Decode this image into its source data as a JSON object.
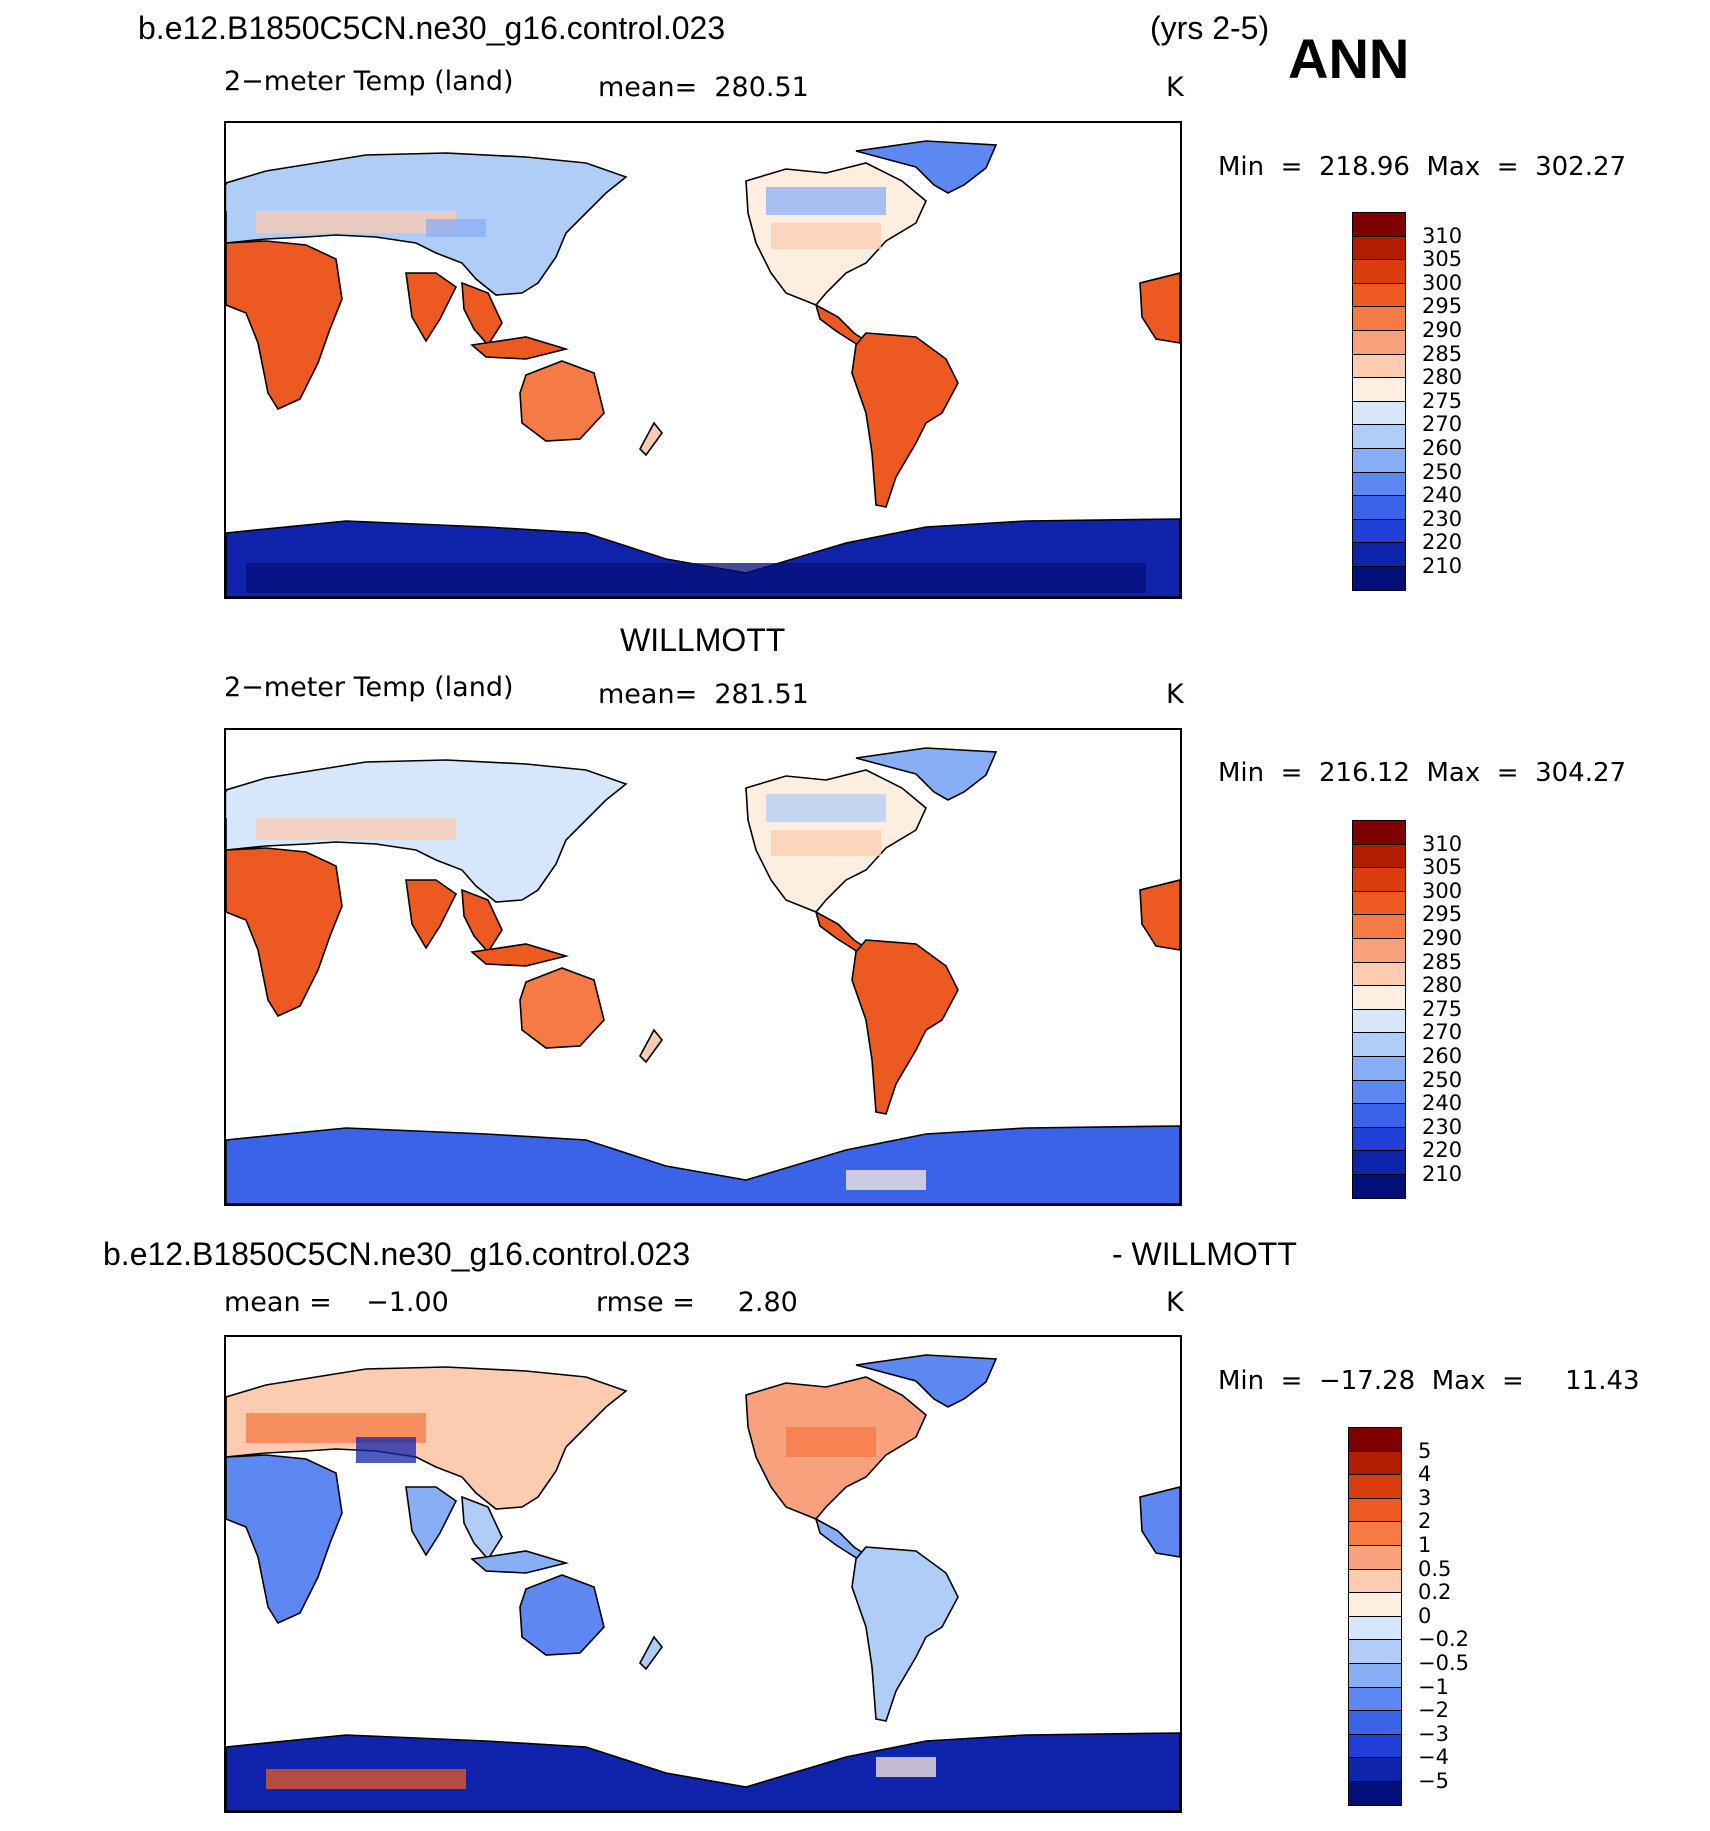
{
  "header": {
    "case_name": "b.e12.B1850C5CN.ne30_g16.control.023",
    "years": "(yrs 2-5)",
    "season": "ANN"
  },
  "panels": [
    {
      "name": "model",
      "variable": "2−meter Temp (land)",
      "stat": "mean=  280.51",
      "units": "K",
      "minmax": "Min  =  218.96  Max  =  302.27",
      "colorbar_labels": [
        "310",
        "305",
        "300",
        "295",
        "290",
        "285",
        "280",
        "275",
        "270",
        "260",
        "250",
        "240",
        "230",
        "220",
        "210"
      ],
      "colorbar_colors": [
        "#7f0000",
        "#b21c00",
        "#d93d0d",
        "#ec5a22",
        "#f57a45",
        "#f9a07c",
        "#fccbb0",
        "#fdeee0",
        "#d6e6fb",
        "#b0cdf8",
        "#88aef5",
        "#5e88f1",
        "#3a63e8",
        "#1f3fd6",
        "#1024ab",
        "#050f7a"
      ]
    },
    {
      "name": "obs",
      "title": "WILLMOTT",
      "variable": "2−meter Temp (land)",
      "stat": "mean=  281.51",
      "units": "K",
      "minmax": "Min  =  216.12  Max  =  304.27",
      "colorbar_labels": [
        "310",
        "305",
        "300",
        "295",
        "290",
        "285",
        "280",
        "275",
        "270",
        "260",
        "250",
        "240",
        "230",
        "220",
        "210"
      ],
      "colorbar_colors": [
        "#7f0000",
        "#b21c00",
        "#d93d0d",
        "#ec5a22",
        "#f57a45",
        "#f9a07c",
        "#fccbb0",
        "#fdeee0",
        "#d6e6fb",
        "#b0cdf8",
        "#88aef5",
        "#5e88f1",
        "#3a63e8",
        "#1f3fd6",
        "#1024ab",
        "#050f7a"
      ]
    },
    {
      "name": "diff",
      "title_left": "b.e12.B1850C5CN.ne30_g16.control.023",
      "title_right": "- WILLMOTT",
      "stat_left": "mean =    −1.00",
      "stat_mid": "rmse =     2.80",
      "units": "K",
      "minmax": "Min  =  −17.28  Max  =     11.43",
      "colorbar_labels": [
        "5",
        "4",
        "3",
        "2",
        "1",
        "0.5",
        "0.2",
        "0",
        "−0.2",
        "−0.5",
        "−1",
        "−2",
        "−3",
        "−4",
        "−5"
      ],
      "colorbar_colors": [
        "#7f0000",
        "#b21c00",
        "#d93d0d",
        "#ec5a22",
        "#f57a45",
        "#f9a07c",
        "#fccbb0",
        "#fdeee0",
        "#d6e6fb",
        "#b0cdf8",
        "#88aef5",
        "#5e88f1",
        "#3a63e8",
        "#1f3fd6",
        "#1024ab",
        "#050f7a"
      ]
    }
  ]
}
